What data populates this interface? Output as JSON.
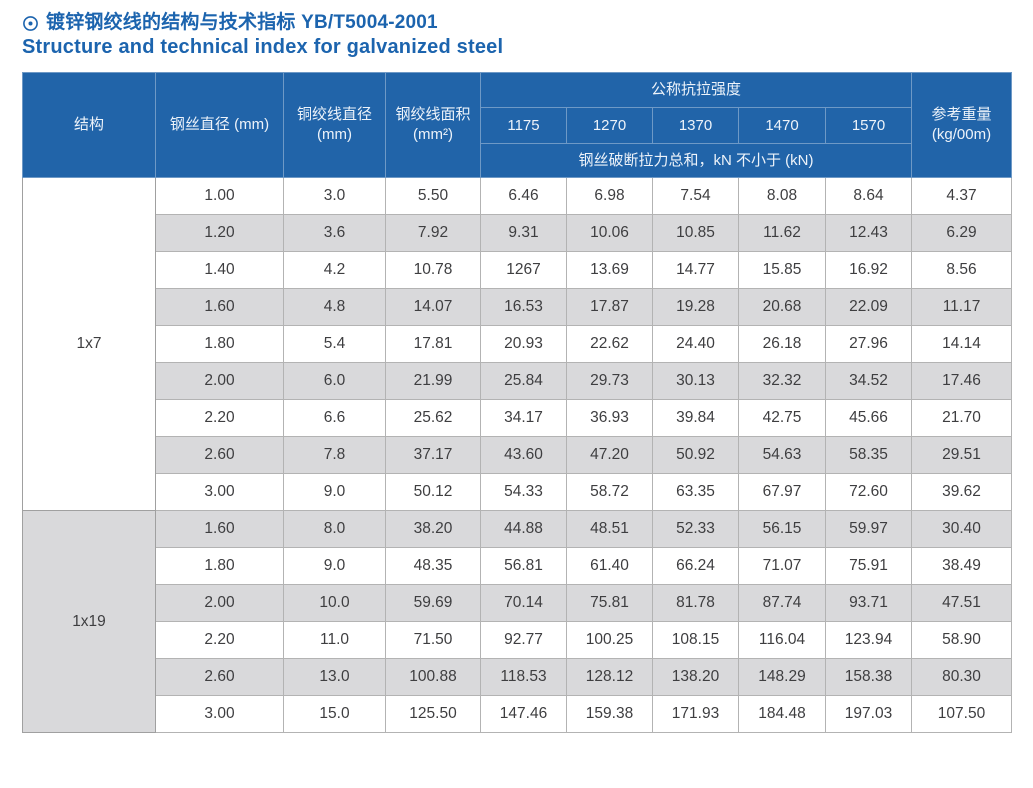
{
  "page": {
    "title_zh": "镀锌钢绞线的结构与技术指标 YB/T5004-2001",
    "title_en": "Structure and technical index for galvanized steel"
  },
  "colors": {
    "header_bg": "#2164A9",
    "header_text": "#EDF3FA",
    "header_border": "#6E99C6",
    "title_text": "#1C64AE",
    "alt_row_bg": "#D9D9DB",
    "cell_text": "#3E3E40",
    "cell_border": "#B3B3B3",
    "outer_border": "#9B9B9B"
  },
  "table": {
    "header": {
      "structure": "结构",
      "wire_diameter": "钢丝直径 (mm)",
      "strand_diameter_line1": "铜绞线直径",
      "strand_diameter_line2": "(mm)",
      "strand_area_line1": "钢绞线面积",
      "strand_area_line2": "(mm²)",
      "tensile_title": "公称抗拉强度",
      "tensile_grades": [
        "1175",
        "1270",
        "1370",
        "1470",
        "1570"
      ],
      "breaking_note": "钢丝破断拉力总和，kN 不小于 (kN)",
      "ref_weight_line1": "参考重量",
      "ref_weight_line2": "(kg/00m)"
    },
    "sections": [
      {
        "structure": "1x7",
        "rows": [
          [
            "1.00",
            "3.0",
            "5.50",
            "6.46",
            "6.98",
            "7.54",
            "8.08",
            "8.64",
            "4.37"
          ],
          [
            "1.20",
            "3.6",
            "7.92",
            "9.31",
            "10.06",
            "10.85",
            "11.62",
            "12.43",
            "6.29"
          ],
          [
            "1.40",
            "4.2",
            "10.78",
            "1267",
            "13.69",
            "14.77",
            "15.85",
            "16.92",
            "8.56"
          ],
          [
            "1.60",
            "4.8",
            "14.07",
            "16.53",
            "17.87",
            "19.28",
            "20.68",
            "22.09",
            "11.17"
          ],
          [
            "1.80",
            "5.4",
            "17.81",
            "20.93",
            "22.62",
            "24.40",
            "26.18",
            "27.96",
            "14.14"
          ],
          [
            "2.00",
            "6.0",
            "21.99",
            "25.84",
            "29.73",
            "30.13",
            "32.32",
            "34.52",
            "17.46"
          ],
          [
            "2.20",
            "6.6",
            "25.62",
            "34.17",
            "36.93",
            "39.84",
            "42.75",
            "45.66",
            "21.70"
          ],
          [
            "2.60",
            "7.8",
            "37.17",
            "43.60",
            "47.20",
            "50.92",
            "54.63",
            "58.35",
            "29.51"
          ],
          [
            "3.00",
            "9.0",
            "50.12",
            "54.33",
            "58.72",
            "63.35",
            "67.97",
            "72.60",
            "39.62"
          ]
        ]
      },
      {
        "structure": "1x19",
        "rows": [
          [
            "1.60",
            "8.0",
            "38.20",
            "44.88",
            "48.51",
            "52.33",
            "56.15",
            "59.97",
            "30.40"
          ],
          [
            "1.80",
            "9.0",
            "48.35",
            "56.81",
            "61.40",
            "66.24",
            "71.07",
            "75.91",
            "38.49"
          ],
          [
            "2.00",
            "10.0",
            "59.69",
            "70.14",
            "75.81",
            "81.78",
            "87.74",
            "93.71",
            "47.51"
          ],
          [
            "2.20",
            "11.0",
            "71.50",
            "92.77",
            "100.25",
            "108.15",
            "116.04",
            "123.94",
            "58.90"
          ],
          [
            "2.60",
            "13.0",
            "100.88",
            "118.53",
            "128.12",
            "138.20",
            "148.29",
            "158.38",
            "80.30"
          ],
          [
            "3.00",
            "15.0",
            "125.50",
            "147.46",
            "159.38",
            "171.93",
            "184.48",
            "197.03",
            "107.50"
          ]
        ]
      }
    ]
  }
}
